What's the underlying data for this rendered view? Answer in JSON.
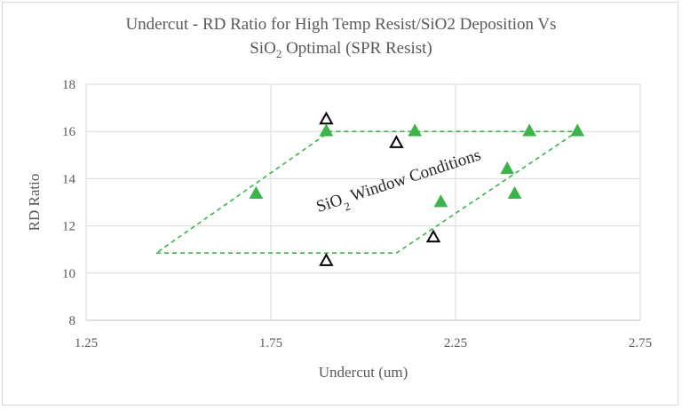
{
  "chart_data": {
    "type": "scatter",
    "title": {
      "line1": "Undercut - RD Ratio for High Temp Resist/SiO2 Deposition Vs",
      "line2_prefix": "SiO",
      "line2_sub": "2",
      "line2_suffix": " Optimal (SPR Resist)"
    },
    "xlabel": "Undercut (um)",
    "ylabel": "RD Ratio",
    "xlim": [
      1.25,
      2.75
    ],
    "ylim": [
      8,
      18
    ],
    "x_ticks": [
      "1.25",
      "1.75",
      "2.25",
      "2.75"
    ],
    "y_ticks": [
      "8",
      "10",
      "12",
      "14",
      "16",
      "18"
    ],
    "grid": true,
    "series": [
      {
        "marker": "filled-triangle",
        "color": "#3cb44b",
        "points": [
          {
            "x": 1.71,
            "y": 13.35
          },
          {
            "x": 1.9,
            "y": 16.0
          },
          {
            "x": 2.14,
            "y": 16.0
          },
          {
            "x": 2.21,
            "y": 13.0
          },
          {
            "x": 2.39,
            "y": 14.4
          },
          {
            "x": 2.41,
            "y": 13.35
          },
          {
            "x": 2.45,
            "y": 16.0
          },
          {
            "x": 2.58,
            "y": 16.0
          }
        ]
      },
      {
        "marker": "open-triangle",
        "color": "#000000",
        "points": [
          {
            "x": 1.9,
            "y": 16.5
          },
          {
            "x": 1.9,
            "y": 10.5
          },
          {
            "x": 2.09,
            "y": 15.5
          },
          {
            "x": 2.19,
            "y": 11.5
          }
        ]
      }
    ],
    "window_region": {
      "color": "#3cb44b",
      "style": "dashed",
      "vertices": [
        {
          "x": 1.44,
          "y": 10.85
        },
        {
          "x": 2.09,
          "y": 10.85
        },
        {
          "x": 2.58,
          "y": 16.0
        },
        {
          "x": 1.91,
          "y": 16.0
        }
      ]
    },
    "annotation": {
      "prefix": "SiO",
      "sub": "2",
      "suffix": " Window Conditions",
      "x": 2.1,
      "y": 13.7,
      "rotation_deg": -18
    },
    "colors": {
      "grid": "#d9d9d9",
      "axis": "#bfbfbf",
      "text": "#595959"
    }
  }
}
